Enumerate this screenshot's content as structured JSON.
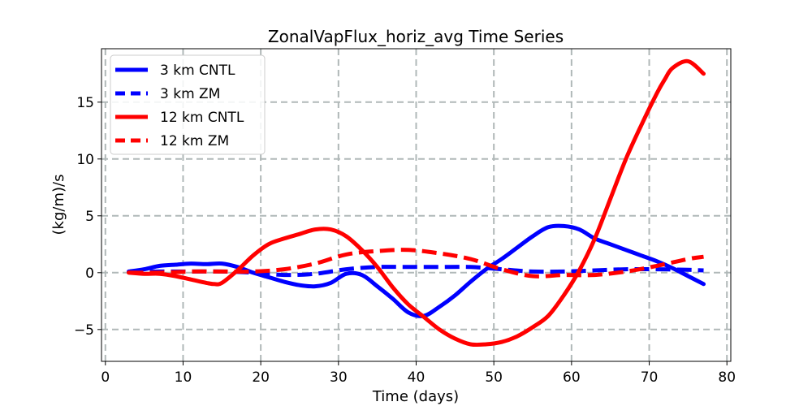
{
  "chart_data": {
    "type": "line",
    "title": "ZonalVapFlux_horiz_avg Time Series",
    "xlabel": "Time (days)",
    "ylabel": "(kg/m)/s",
    "xlim": [
      -0.5,
      80.5
    ],
    "ylim": [
      -7.8,
      19.7
    ],
    "xticks": [
      0,
      10,
      20,
      30,
      40,
      50,
      60,
      70,
      80
    ],
    "yticks": [
      -5,
      0,
      5,
      10,
      15
    ],
    "ytick_labels": [
      "−5",
      "0",
      "5",
      "10",
      "15"
    ],
    "grid": true,
    "legend_position": "top-left",
    "series": [
      {
        "name": "3 km CNTL",
        "color": "#0000ff",
        "style": "solid",
        "x": [
          3,
          5,
          7,
          9,
          11,
          13,
          15,
          17,
          19,
          21,
          23,
          25,
          27,
          29,
          31,
          33,
          35,
          37,
          39,
          41,
          43,
          45,
          47,
          49,
          51,
          53,
          55,
          57,
          59,
          61,
          63,
          65,
          67,
          69,
          71,
          73,
          75,
          77
        ],
        "y": [
          0.1,
          0.3,
          0.6,
          0.7,
          0.8,
          0.75,
          0.8,
          0.5,
          0.0,
          -0.4,
          -0.8,
          -1.1,
          -1.2,
          -0.9,
          -0.1,
          -0.2,
          -1.2,
          -2.3,
          -3.5,
          -3.8,
          -3.0,
          -2.0,
          -0.8,
          0.3,
          1.2,
          2.2,
          3.2,
          4.0,
          4.1,
          3.8,
          3.0,
          2.5,
          2.0,
          1.5,
          1.0,
          0.4,
          -0.3,
          -1.0
        ]
      },
      {
        "name": "3 km ZM",
        "color": "#0000ff",
        "style": "dashed",
        "x": [
          3,
          7,
          11,
          15,
          19,
          23,
          27,
          31,
          35,
          39,
          43,
          47,
          51,
          55,
          59,
          63,
          67,
          71,
          75,
          77
        ],
        "y": [
          0.05,
          0.1,
          0.1,
          0.1,
          0.0,
          -0.2,
          -0.1,
          0.3,
          0.5,
          0.5,
          0.5,
          0.5,
          0.3,
          0.1,
          0.1,
          0.2,
          0.3,
          0.3,
          0.25,
          0.2
        ]
      },
      {
        "name": "12 km CNTL",
        "color": "#ff0000",
        "style": "solid",
        "x": [
          3,
          5,
          7,
          9,
          11,
          13,
          14,
          15,
          17,
          19,
          21,
          23,
          25,
          27,
          29,
          31,
          33,
          35,
          37,
          39,
          41,
          43,
          45,
          47,
          49,
          51,
          53,
          55,
          57,
          59,
          61,
          63,
          65,
          67,
          69,
          71,
          72,
          73,
          75,
          77
        ],
        "y": [
          0.0,
          -0.1,
          -0.1,
          -0.3,
          -0.6,
          -0.9,
          -1.0,
          -0.9,
          0.2,
          1.5,
          2.5,
          3.0,
          3.4,
          3.8,
          3.8,
          3.2,
          2.0,
          0.5,
          -1.3,
          -2.8,
          -3.9,
          -5.0,
          -5.8,
          -6.3,
          -6.3,
          -6.1,
          -5.6,
          -4.8,
          -3.8,
          -2.0,
          0.2,
          3.0,
          6.5,
          10.0,
          13.0,
          15.8,
          17.0,
          18.0,
          18.6,
          17.5
        ]
      },
      {
        "name": "12 km ZM",
        "color": "#ff0000",
        "style": "dashed",
        "x": [
          3,
          7,
          11,
          15,
          19,
          23,
          27,
          31,
          35,
          39,
          43,
          47,
          51,
          55,
          59,
          63,
          67,
          71,
          75,
          77
        ],
        "y": [
          0.0,
          0.0,
          0.1,
          0.1,
          0.1,
          0.3,
          0.8,
          1.6,
          1.9,
          2.0,
          1.7,
          1.2,
          0.3,
          -0.3,
          -0.2,
          -0.2,
          0.1,
          0.6,
          1.2,
          1.4
        ]
      }
    ]
  }
}
